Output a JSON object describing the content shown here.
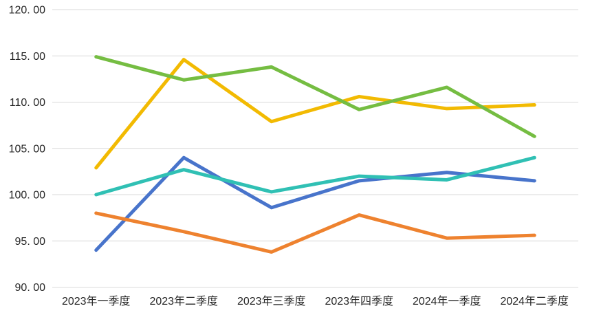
{
  "chart_data": {
    "type": "line",
    "title": "",
    "xlabel": "",
    "ylabel": "",
    "legend": "none",
    "grid": "horizontal",
    "ylim": [
      90,
      120
    ],
    "ytick_step": 5,
    "categories": [
      "2023年一季度",
      "2023年二季度",
      "2023年三季度",
      "2023年四季度",
      "2024年一季度",
      "2024年二季度"
    ],
    "yticks": [
      {
        "value": 90,
        "label": "90. 00"
      },
      {
        "value": 95,
        "label": "95. 00"
      },
      {
        "value": 100,
        "label": "100. 00"
      },
      {
        "value": 105,
        "label": "105. 00"
      },
      {
        "value": 110,
        "label": "110. 00"
      },
      {
        "value": 115,
        "label": "115. 00"
      },
      {
        "value": 120,
        "label": "120. 00"
      }
    ],
    "series": [
      {
        "name": "series-blue",
        "color": "#4874CB",
        "values": [
          94.0,
          104.0,
          98.6,
          101.5,
          102.4,
          101.5
        ]
      },
      {
        "name": "series-orange",
        "color": "#EE822F",
        "values": [
          98.0,
          96.0,
          93.8,
          97.8,
          95.3,
          95.6
        ]
      },
      {
        "name": "series-yellow",
        "color": "#F2BA02",
        "values": [
          102.9,
          114.6,
          107.9,
          110.6,
          109.3,
          109.7
        ]
      },
      {
        "name": "series-green",
        "color": "#75BD42",
        "values": [
          114.9,
          112.4,
          113.8,
          109.2,
          111.6,
          106.3
        ]
      },
      {
        "name": "series-teal",
        "color": "#30C0B4",
        "values": [
          100.0,
          102.7,
          100.3,
          102.0,
          101.6,
          104.0
        ]
      }
    ]
  },
  "style": {
    "background_color": "#FFFFFF",
    "gridline_color": "#D9D9D9",
    "tick_text_color": "#262626",
    "line_width": 5,
    "tick_font_size": 16
  }
}
